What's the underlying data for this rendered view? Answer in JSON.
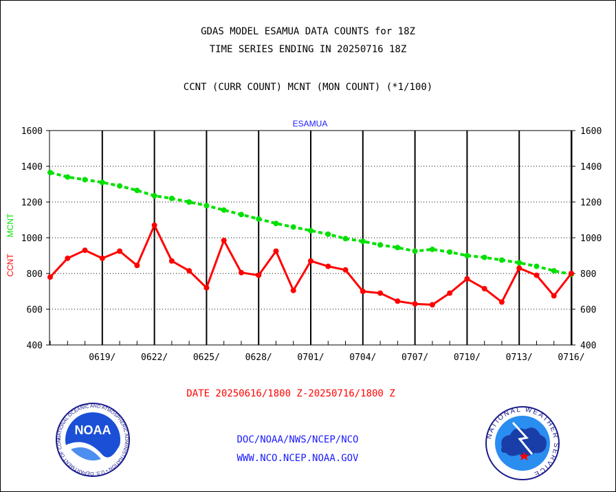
{
  "header": {
    "title": "GDAS MODEL ESAMUA DATA COUNTS for 18Z",
    "subtitle": "TIME SERIES ENDING IN 20250716 18Z",
    "legend_text": "CCNT (CURR COUNT) MCNT (MON COUNT) (*1/100)"
  },
  "footer": {
    "date_range": "DATE 20250616/1800 Z-20250716/1800 Z",
    "credit_line1": "DOC/NOAA/NWS/NCEP/NCO",
    "credit_line2": "WWW.NCO.NCEP.NOAA.GOV"
  },
  "logos": {
    "noaa_emblem": "NOAA",
    "noaa_ring_text": "NATIONAL OCEANIC AND ATMOSPHERIC ADMINISTRATION • U.S. DEPARTMENT OF COMMERCE",
    "nws_ring_text": "NATIONAL WEATHER SERVICE"
  },
  "colors": {
    "ccnt": "#ff0000",
    "mcnt": "#00e000",
    "station": "#1a1aff",
    "grid": "#000000"
  },
  "chart_data": {
    "type": "line",
    "title": "ESAMUA",
    "ylabel_parts": [
      "CCNT",
      "MCNT"
    ],
    "ylim": [
      400,
      1600
    ],
    "yticks": [
      400,
      600,
      800,
      1000,
      1200,
      1400,
      1600
    ],
    "x_dates": [
      "0616",
      "0617",
      "0618",
      "0619",
      "0620",
      "0621",
      "0622",
      "0623",
      "0624",
      "0625",
      "0626",
      "0627",
      "0628",
      "0629",
      "0630",
      "0701",
      "0702",
      "0703",
      "0704",
      "0705",
      "0706",
      "0707",
      "0708",
      "0709",
      "0710",
      "0711",
      "0712",
      "0713",
      "0714",
      "0715",
      "0716"
    ],
    "xticks": [
      {
        "date": "0619",
        "label": "0619/"
      },
      {
        "date": "0622",
        "label": "0622/"
      },
      {
        "date": "0625",
        "label": "0625/"
      },
      {
        "date": "0628",
        "label": "0628/"
      },
      {
        "date": "0701",
        "label": "0701/"
      },
      {
        "date": "0704",
        "label": "0704/"
      },
      {
        "date": "0707",
        "label": "0707/"
      },
      {
        "date": "0710",
        "label": "0710/"
      },
      {
        "date": "0713",
        "label": "0713/"
      },
      {
        "date": "0716",
        "label": "0716/"
      }
    ],
    "series": [
      {
        "name": "CCNT",
        "values": [
          780,
          885,
          930,
          885,
          925,
          845,
          1070,
          870,
          815,
          720,
          985,
          805,
          790,
          925,
          705,
          870,
          840,
          820,
          700,
          690,
          645,
          630,
          625,
          690,
          770,
          715,
          640,
          830,
          790,
          675,
          800
        ]
      },
      {
        "name": "MCNT",
        "values": [
          1365,
          1340,
          1325,
          1310,
          1290,
          1265,
          1235,
          1220,
          1200,
          1180,
          1155,
          1130,
          1105,
          1080,
          1060,
          1040,
          1020,
          995,
          980,
          960,
          945,
          925,
          935,
          920,
          900,
          890,
          875,
          860,
          840,
          815,
          795
        ]
      }
    ]
  }
}
